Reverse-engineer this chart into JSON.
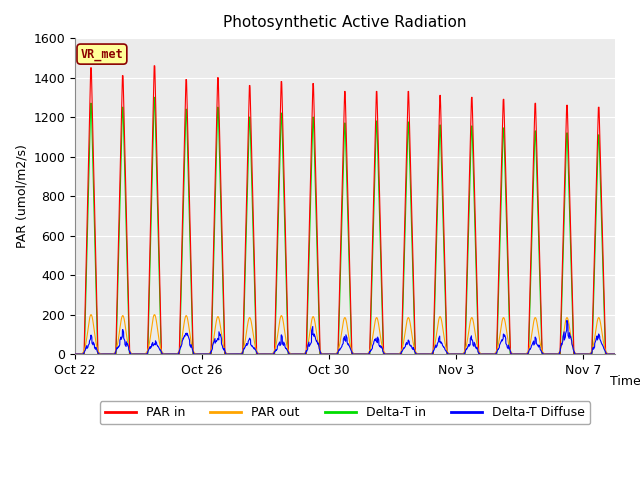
{
  "title": "Photosynthetic Active Radiation",
  "ylabel": "PAR (umol/m2/s)",
  "xlabel": "Time",
  "background_color": "#ebebeb",
  "ylim": [
    0,
    1600
  ],
  "yticks": [
    0,
    200,
    400,
    600,
    800,
    1000,
    1200,
    1400,
    1600
  ],
  "xtick_labels": [
    "Oct 22",
    "Oct 26",
    "Oct 30",
    "Nov 3",
    "Nov 7"
  ],
  "xtick_positions": [
    0,
    4,
    8,
    12,
    16
  ],
  "num_days": 17,
  "legend_labels": [
    "PAR in",
    "PAR out",
    "Delta-T in",
    "Delta-T Diffuse"
  ],
  "legend_colors": [
    "#ff0000",
    "#ffa500",
    "#00dd00",
    "#0000ff"
  ],
  "watermark_text": "VR_met",
  "watermark_color": "#8B0000",
  "watermark_bg": "#ffff99",
  "par_in_peaks": [
    1450,
    1410,
    1460,
    1390,
    1400,
    1360,
    1380,
    1370,
    1330,
    1330,
    1330,
    1310,
    1300,
    1290,
    1270,
    1260,
    1250
  ],
  "par_out_peaks": [
    200,
    195,
    200,
    195,
    190,
    185,
    195,
    190,
    185,
    185,
    185,
    190,
    185,
    185,
    185,
    185,
    185
  ],
  "delta_t_in_peaks": [
    1270,
    1250,
    1300,
    1240,
    1250,
    1200,
    1220,
    1200,
    1170,
    1180,
    1175,
    1160,
    1155,
    1145,
    1130,
    1120,
    1110
  ],
  "delta_t_diff_peaks": [
    100,
    130,
    90,
    130,
    145,
    100,
    105,
    150,
    115,
    110,
    90,
    110,
    105,
    120,
    90,
    180,
    120
  ],
  "title_fontsize": 11,
  "axis_label_fontsize": 9,
  "tick_fontsize": 9,
  "legend_fontsize": 9
}
